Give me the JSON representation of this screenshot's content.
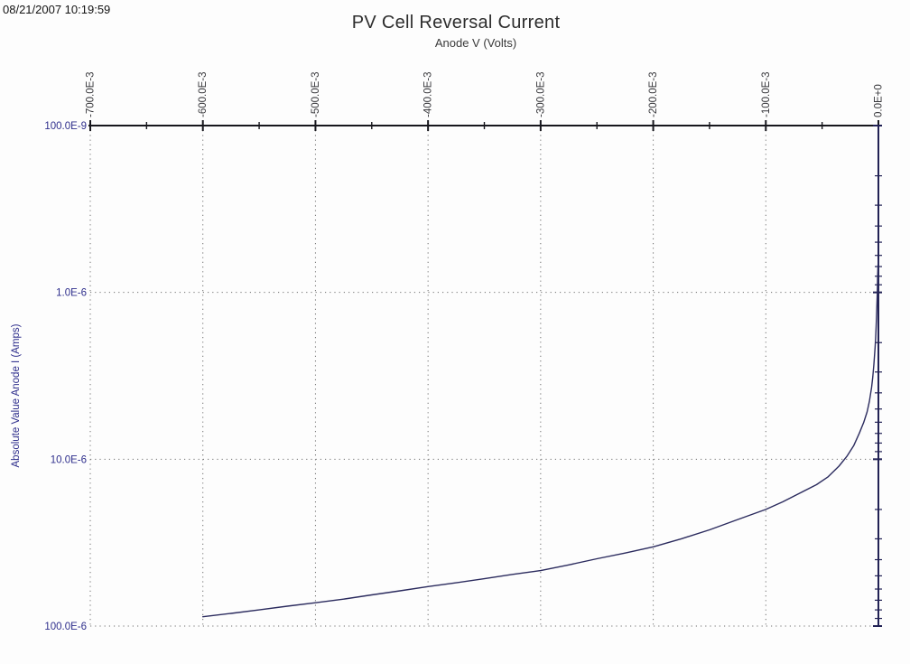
{
  "header": {
    "timestamp": "08/21/2007 10:19:59"
  },
  "chart_data": {
    "type": "line",
    "title": "PV Cell Reversal Current",
    "xlabel": "Anode V (Volts)",
    "ylabel": "Absolute Value Anode I (Amps)",
    "legend": "none",
    "grid": "dotted at major ticks only",
    "x_axis": {
      "position": "top",
      "min": -0.7,
      "max": 0.0,
      "minor_tick_step": 0.05,
      "major_ticks": [
        {
          "value": -0.7,
          "label": "-700.0E-3"
        },
        {
          "value": -0.6,
          "label": "-600.0E-3"
        },
        {
          "value": -0.5,
          "label": "-500.0E-3"
        },
        {
          "value": -0.4,
          "label": "-400.0E-3"
        },
        {
          "value": -0.3,
          "label": "-300.0E-3"
        },
        {
          "value": -0.2,
          "label": "-200.0E-3"
        },
        {
          "value": -0.1,
          "label": "-100.0E-3"
        },
        {
          "value": 0.0,
          "label": "0.0E+0"
        }
      ]
    },
    "y_axis": {
      "position_labels": "left",
      "axis_line": "right",
      "scale": "log",
      "inverted": true,
      "top_value": 1e-07,
      "bottom_value": 0.0001,
      "minor_multiples": [
        2,
        3,
        4,
        5,
        6,
        7,
        8,
        9
      ],
      "major_ticks": [
        {
          "value": 1e-07,
          "label": "100.0E-9"
        },
        {
          "value": 1e-06,
          "label": "1.0E-6"
        },
        {
          "value": 1e-05,
          "label": "10.0E-6"
        },
        {
          "value": 0.0001,
          "label": "100.0E-6"
        }
      ]
    },
    "series": [
      {
        "name": "Absolute Value Anode I",
        "color": "#2b2b5e",
        "points": [
          [
            -0.6,
            8.8e-05
          ],
          [
            -0.575,
            8.4e-05
          ],
          [
            -0.55,
            8e-05
          ],
          [
            -0.525,
            7.6e-05
          ],
          [
            -0.5,
            7.25e-05
          ],
          [
            -0.475,
            6.9e-05
          ],
          [
            -0.45,
            6.5e-05
          ],
          [
            -0.425,
            6.15e-05
          ],
          [
            -0.4,
            5.8e-05
          ],
          [
            -0.375,
            5.5e-05
          ],
          [
            -0.35,
            5.2e-05
          ],
          [
            -0.325,
            4.9e-05
          ],
          [
            -0.3,
            4.65e-05
          ],
          [
            -0.275,
            4.3e-05
          ],
          [
            -0.25,
            3.95e-05
          ],
          [
            -0.225,
            3.65e-05
          ],
          [
            -0.2,
            3.35e-05
          ],
          [
            -0.175,
            3e-05
          ],
          [
            -0.15,
            2.65e-05
          ],
          [
            -0.125,
            2.3e-05
          ],
          [
            -0.1,
            2e-05
          ],
          [
            -0.085,
            1.8e-05
          ],
          [
            -0.07,
            1.6e-05
          ],
          [
            -0.055,
            1.42e-05
          ],
          [
            -0.045,
            1.28e-05
          ],
          [
            -0.035,
            1.1e-05
          ],
          [
            -0.028,
            9.6e-06
          ],
          [
            -0.022,
            8.3e-06
          ],
          [
            -0.017,
            7e-06
          ],
          [
            -0.013,
            6e-06
          ],
          [
            -0.01,
            5.2e-06
          ],
          [
            -0.008,
            4.5e-06
          ],
          [
            -0.006,
            3.7e-06
          ],
          [
            -0.005,
            3.2e-06
          ],
          [
            -0.004,
            2.7e-06
          ],
          [
            -0.003,
            2.15e-06
          ],
          [
            -0.0025,
            1.9e-06
          ],
          [
            -0.002,
            1.6e-06
          ],
          [
            -0.0015,
            1.3e-06
          ],
          [
            -0.001,
            1e-06
          ],
          [
            -0.0007,
            8.2e-07
          ],
          [
            -0.0004,
            7e-07
          ],
          [
            -0.0002,
            6.6e-07
          ],
          [
            0.0,
            6.4e-07
          ]
        ]
      }
    ],
    "colors": {
      "curve": "#2b2b5e",
      "top_axis": "#17171d",
      "right_axis": "#222255",
      "grid_dots": "#6e6e6e",
      "x_tick_labels": "#38383c",
      "y_tick_labels": "#2e2e8c",
      "y_axis_title": "#2e2e8c"
    }
  }
}
